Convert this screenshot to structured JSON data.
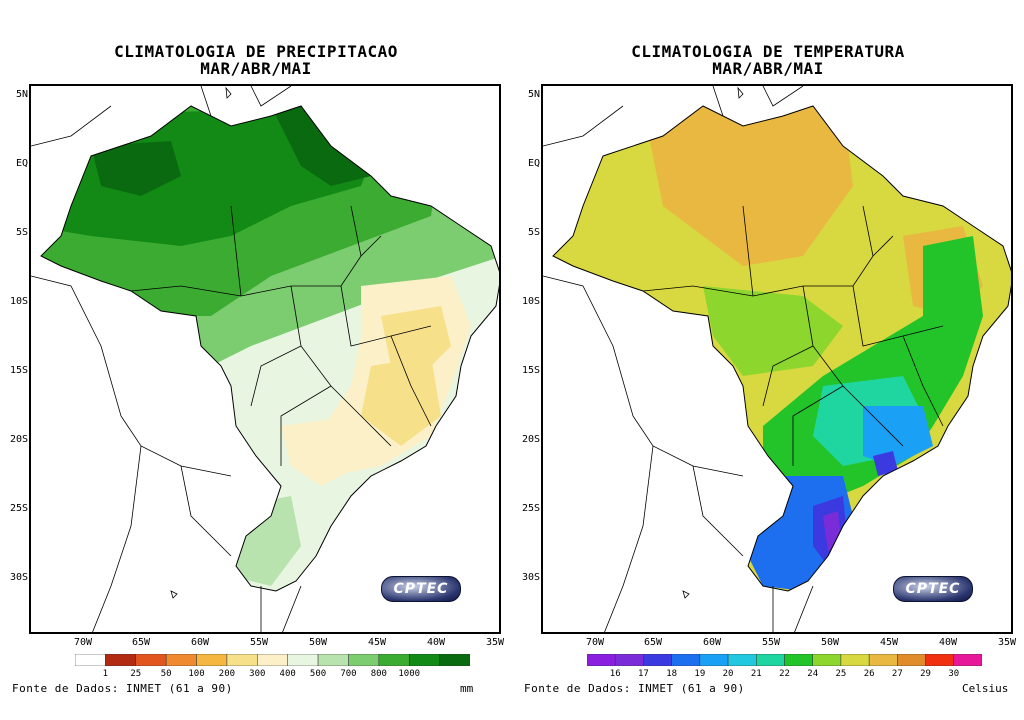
{
  "left": {
    "title_line1": "CLIMATOLOGIA DE PRECIPITACAO",
    "title_line2": "MAR/ABR/MAI",
    "y_ticks": [
      "5N",
      "EQ",
      "5S",
      "10S",
      "15S",
      "20S",
      "25S",
      "30S"
    ],
    "x_ticks": [
      "70W",
      "65W",
      "60W",
      "55W",
      "50W",
      "45W",
      "40W",
      "35W"
    ],
    "colorbar": {
      "labels": [
        "1",
        "25",
        "50",
        "100",
        "200",
        "300",
        "400",
        "500",
        "700",
        "800",
        "1000"
      ],
      "colors": [
        "#ffffff",
        "#b22a12",
        "#e2551f",
        "#f08a30",
        "#f5b740",
        "#f6e08a",
        "#fbf0c8",
        "#e8f5e0",
        "#b8e2ae",
        "#7ccc70",
        "#3cab32",
        "#138a16",
        "#0a6a10"
      ]
    },
    "source": "Fonte de Dados: INMET (61 a 90)",
    "unit": "mm",
    "logo": "CPTEC"
  },
  "right": {
    "title_line1": "CLIMATOLOGIA DE TEMPERATURA",
    "title_line2": "MAR/ABR/MAI",
    "y_ticks": [
      "5N",
      "EQ",
      "5S",
      "10S",
      "15S",
      "20S",
      "25S",
      "30S"
    ],
    "x_ticks": [
      "70W",
      "65W",
      "60W",
      "55W",
      "50W",
      "45W",
      "40W",
      "35W"
    ],
    "colorbar": {
      "labels": [
        "16",
        "17",
        "18",
        "19",
        "20",
        "21",
        "22",
        "24",
        "25",
        "26",
        "27",
        "29",
        "30"
      ],
      "colors": [
        "#8a1fe0",
        "#7a2cd8",
        "#3a3ae0",
        "#1e6ef0",
        "#1aa0f4",
        "#22c8e0",
        "#20d6a0",
        "#22c42a",
        "#8cd62e",
        "#d8d840",
        "#e8b840",
        "#e08c2a",
        "#f03010",
        "#e8189a"
      ]
    },
    "source": "Fonte de Dados: INMET (61 a 90)",
    "unit": "Celsius",
    "logo": "CPTEC"
  }
}
